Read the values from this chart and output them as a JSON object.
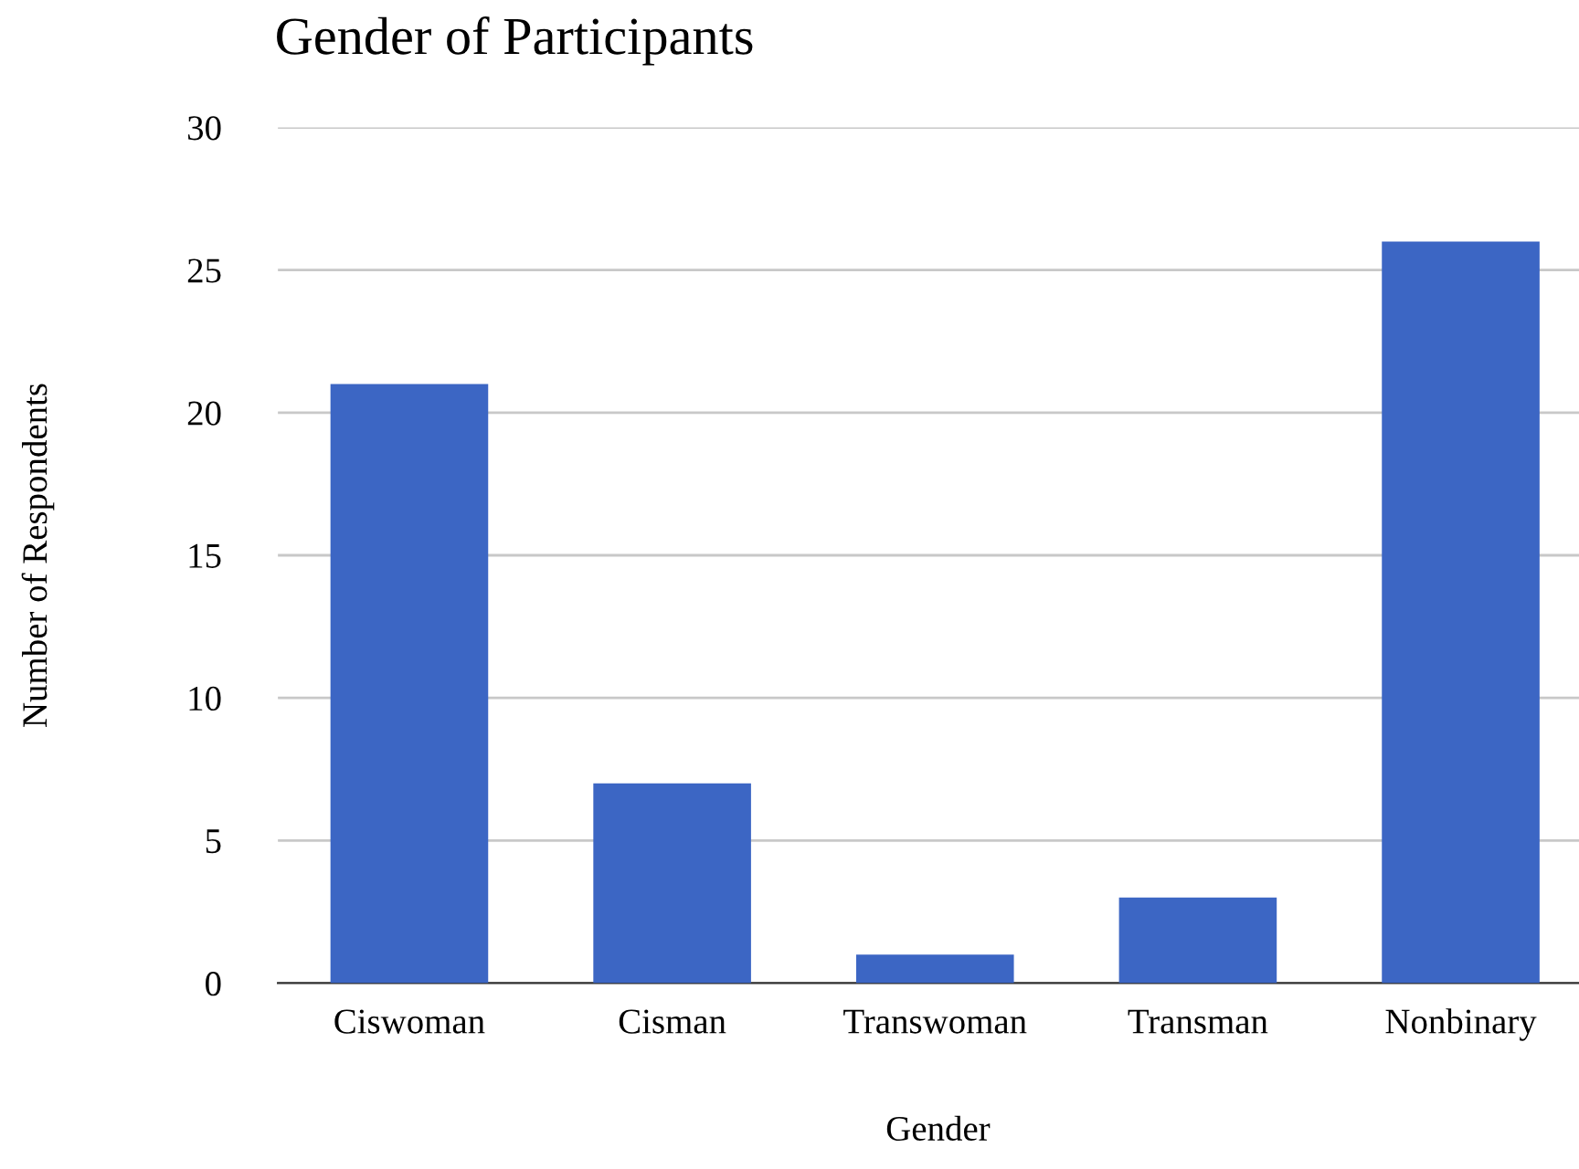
{
  "chart_data": {
    "type": "bar",
    "title": "Gender of Participants",
    "xlabel": "Gender",
    "ylabel": "Number of Respondents",
    "categories": [
      "Ciswoman",
      "Cisman",
      "Transwoman",
      "Transman",
      "Nonbinary"
    ],
    "values": [
      21,
      7,
      1,
      3,
      26
    ],
    "color": "#3c66c4",
    "ylim": [
      0,
      30
    ],
    "yticks": [
      0,
      5,
      10,
      15,
      20,
      25,
      30
    ],
    "grid": "y",
    "legend": false
  }
}
